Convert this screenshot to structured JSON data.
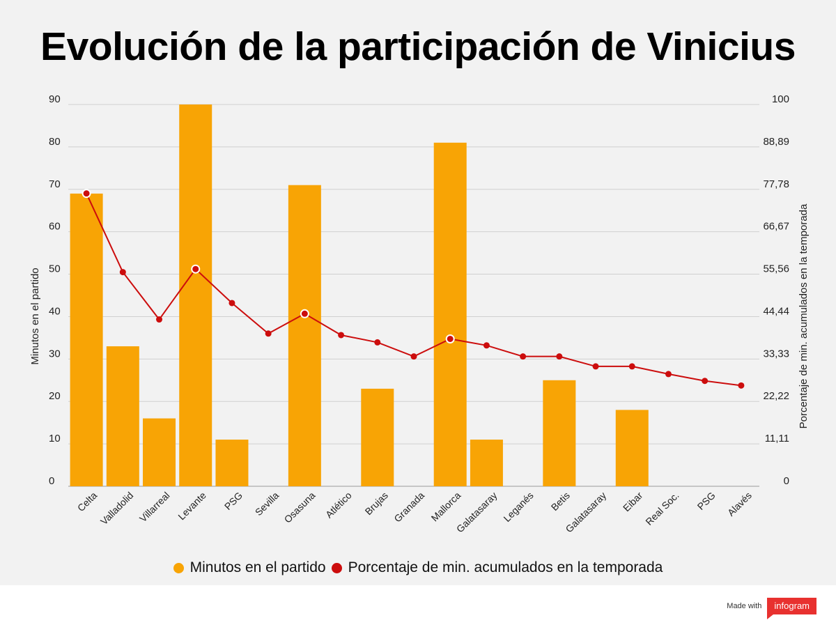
{
  "title": "Evolución de la participación de Vinicius",
  "chart_data": {
    "type": "bar",
    "categories": [
      "Celta",
      "Valladolid",
      "Villarreal",
      "Levante",
      "PSG",
      "Sevilla",
      "Osasuna",
      "Atlético",
      "Brujas",
      "Granada",
      "Mallorca",
      "Galatasaray",
      "Leganés",
      "Betis",
      "Galatasaray",
      "Eibar",
      "Real Soc.",
      "PSG",
      "Alavés"
    ],
    "series": [
      {
        "name": "Minutos en el partido",
        "type": "bar",
        "axis": "left",
        "color": "#f8a405",
        "values": [
          69,
          33,
          16,
          90,
          11,
          0,
          71,
          0,
          23,
          0,
          81,
          11,
          0,
          25,
          0,
          18,
          0,
          0,
          0
        ]
      },
      {
        "name": "Porcentaje de min. acumulados en la temporada",
        "type": "line",
        "axis": "right",
        "color": "#cc0d0d",
        "values": [
          76.7,
          56.1,
          43.7,
          56.9,
          48.0,
          40.0,
          45.2,
          39.6,
          37.7,
          34.0,
          38.6,
          36.9,
          34.0,
          34.0,
          31.4,
          31.4,
          29.4,
          27.6,
          26.4
        ],
        "highlighted": [
          0,
          3,
          6,
          10
        ]
      }
    ],
    "ylabel_left": "Minutos en el partido",
    "ylabel_right": "Porcentaje de min. acumulados en la temporada",
    "ylim_left": [
      0,
      90
    ],
    "ylim_right": [
      0,
      100
    ],
    "left_ticks": [
      "0",
      "10",
      "20",
      "30",
      "40",
      "50",
      "60",
      "70",
      "80",
      "90"
    ],
    "right_ticks": [
      "0",
      "11,11",
      "22,22",
      "33,33",
      "44,44",
      "55,56",
      "66,67",
      "77,78",
      "88,89",
      "100"
    ],
    "grid": true,
    "legend_position": "bottom"
  },
  "legend": {
    "minutes_label": "Minutos en el partido",
    "percent_label": "Porcentaje de min. acumulados en la temporada",
    "minutes_color": "#f8a405",
    "percent_color": "#cc0d0d"
  },
  "footer": {
    "made_with": "Made with",
    "brand": "infogram"
  }
}
